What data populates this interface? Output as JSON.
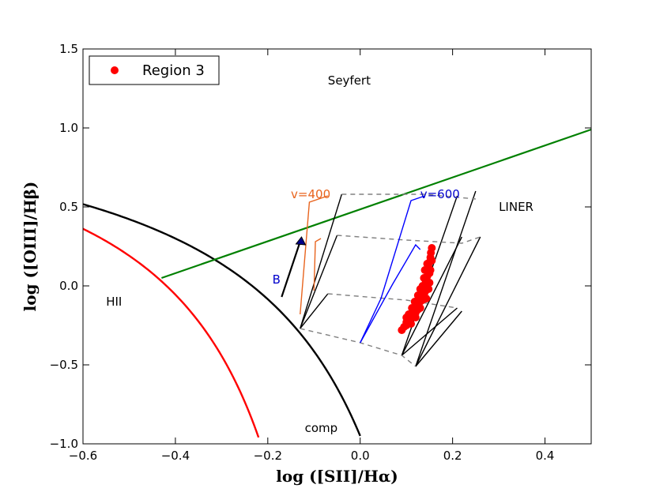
{
  "chart_data": {
    "type": "scatter",
    "xlabel": "log  ([SII]/Hα)",
    "ylabel": "log  ([OIII]/Hβ)",
    "xlim": [
      -0.6,
      0.5
    ],
    "ylim": [
      -1.0,
      1.5
    ],
    "x_ticks": [
      -0.6,
      -0.4,
      -0.2,
      0.0,
      0.2,
      0.4
    ],
    "x_tick_labels": [
      "−0.6",
      "−0.4",
      "−0.2",
      "0.0",
      "0.2",
      "0.4"
    ],
    "y_ticks": [
      -1.0,
      -0.5,
      0.0,
      0.5,
      1.0,
      1.5
    ],
    "y_tick_labels": [
      "−1.0",
      "−0.5",
      "0.0",
      "0.5",
      "1.0",
      "1.5"
    ],
    "legend": {
      "label": "Region 3",
      "location": "upper-left",
      "color": "#ff0000"
    },
    "region_labels": [
      {
        "text": "Seyfert",
        "x": -0.07,
        "y": 1.3
      },
      {
        "text": "LINER",
        "x": 0.3,
        "y": 0.5
      },
      {
        "text": "HII",
        "x": -0.55,
        "y": -0.1
      },
      {
        "text": "comp",
        "x": -0.12,
        "y": -0.9
      }
    ],
    "model_annotations": [
      {
        "text": "v=400",
        "x": -0.15,
        "y": 0.58,
        "color": "#e8641e"
      },
      {
        "text": "v=600",
        "x": 0.13,
        "y": 0.58,
        "color": "#0000cc"
      },
      {
        "text": "B",
        "x": -0.19,
        "y": 0.04,
        "color": "#0000cc"
      }
    ],
    "colors": {
      "kauffmann": "#ff0000",
      "kewley": "#000000",
      "seyfert_liner": "#008000",
      "v400": "#e8641e",
      "v600": "#0000ff",
      "grid": "#000000",
      "dashed": "#808080",
      "points": "#ff0000",
      "arrow_head": "#00008b"
    },
    "series": [
      {
        "name": "Region 3",
        "points": [
          [
            0.09,
            -0.28
          ],
          [
            0.095,
            -0.26
          ],
          [
            0.1,
            -0.25
          ],
          [
            0.1,
            -0.23
          ],
          [
            0.105,
            -0.22
          ],
          [
            0.11,
            -0.2
          ],
          [
            0.11,
            -0.24
          ],
          [
            0.115,
            -0.18
          ],
          [
            0.12,
            -0.17
          ],
          [
            0.12,
            -0.2
          ],
          [
            0.125,
            -0.15
          ],
          [
            0.125,
            -0.12
          ],
          [
            0.13,
            -0.1
          ],
          [
            0.13,
            -0.14
          ],
          [
            0.133,
            -0.07
          ],
          [
            0.135,
            -0.05
          ],
          [
            0.135,
            -0.09
          ],
          [
            0.138,
            -0.02
          ],
          [
            0.14,
            0.0
          ],
          [
            0.14,
            -0.04
          ],
          [
            0.142,
            0.03
          ],
          [
            0.145,
            0.06
          ],
          [
            0.145,
            0.02
          ],
          [
            0.147,
            0.09
          ],
          [
            0.148,
            0.12
          ],
          [
            0.15,
            0.15
          ],
          [
            0.15,
            0.08
          ],
          [
            0.152,
            0.18
          ],
          [
            0.153,
            0.21
          ],
          [
            0.155,
            0.24
          ],
          [
            0.14,
            0.1
          ],
          [
            0.138,
            0.05
          ],
          [
            0.145,
            0.14
          ],
          [
            0.15,
            0.02
          ],
          [
            0.13,
            -0.02
          ],
          [
            0.125,
            -0.06
          ],
          [
            0.118,
            -0.1
          ],
          [
            0.112,
            -0.14
          ],
          [
            0.105,
            -0.18
          ],
          [
            0.1,
            -0.2
          ],
          [
            0.148,
            -0.02
          ],
          [
            0.143,
            -0.08
          ],
          [
            0.152,
            0.1
          ],
          [
            0.155,
            0.16
          ],
          [
            0.135,
            0.0
          ]
        ]
      }
    ]
  }
}
